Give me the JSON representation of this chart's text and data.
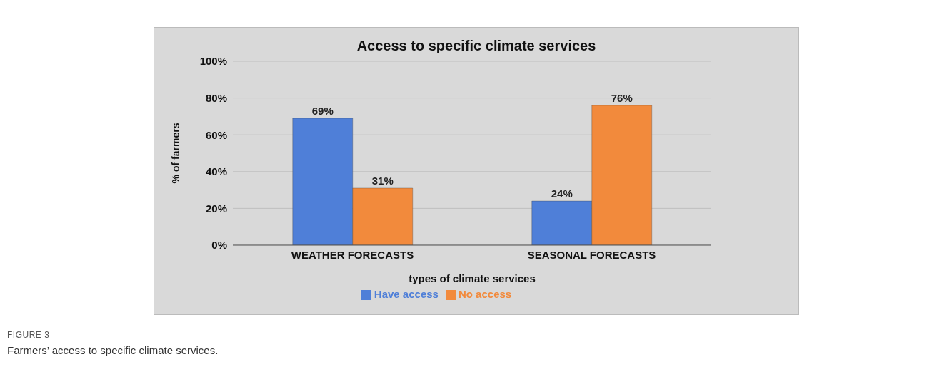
{
  "chart_data": {
    "type": "bar",
    "title": "Access to specific climate services",
    "xlabel": "types of climate services",
    "ylabel": "% of farmers",
    "categories": [
      "WEATHER FORECASTS",
      "SEASONAL FORECASTS"
    ],
    "series": [
      {
        "name": "Have access",
        "color": "#4f7fd8",
        "values": [
          69,
          24
        ],
        "value_labels": [
          "69%",
          "24%"
        ]
      },
      {
        "name": "No access",
        "color": "#f28a3c",
        "values": [
          31,
          76
        ],
        "value_labels": [
          "31%",
          "76%"
        ]
      }
    ],
    "ylim": [
      0,
      100
    ],
    "yticks": [
      {
        "value": 0,
        "label": "0%"
      },
      {
        "value": 20,
        "label": "20%"
      },
      {
        "value": 40,
        "label": "40%"
      },
      {
        "value": 60,
        "label": "60%"
      },
      {
        "value": 80,
        "label": "80%"
      },
      {
        "value": 100,
        "label": "100%"
      }
    ],
    "grid": "y",
    "legend": "bottom",
    "annotations": [
      "FIGURE 3",
      "Farmers’ access to specific climate services."
    ]
  }
}
